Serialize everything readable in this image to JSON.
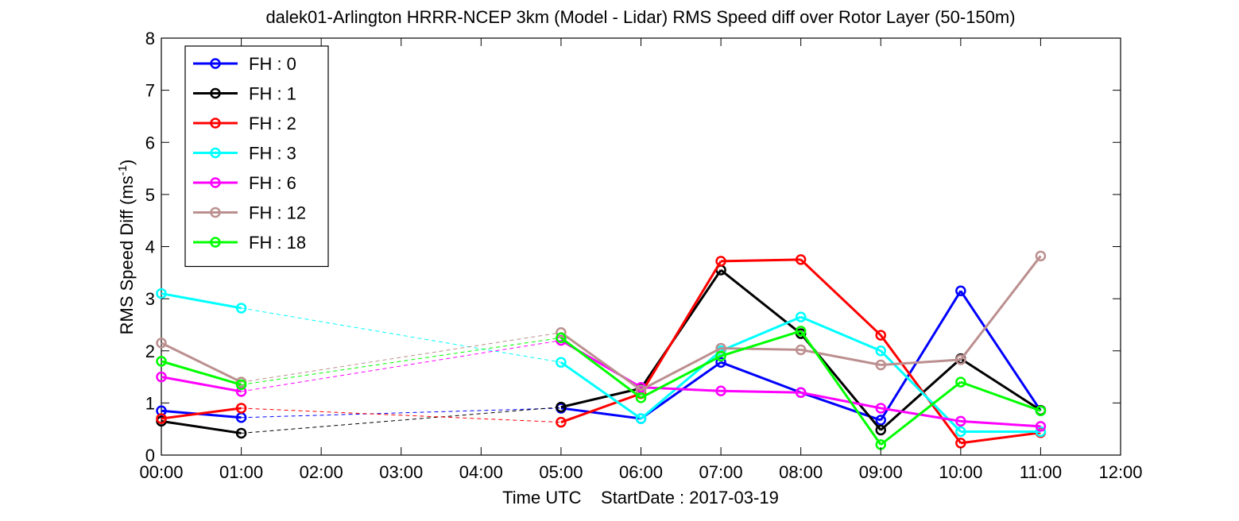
{
  "chart_data": {
    "type": "line",
    "title": "dalek01-Arlington HRRR-NCEP 3km (Model - Lidar) RMS Speed diff over Rotor Layer (50-150m)",
    "xlabel": "Time UTC    StartDate : 2017-03-19",
    "ylabel_main": "RMS Speed Diff (ms",
    "ylabel_sup": "-1",
    "ylabel_tail": ")",
    "xlim": [
      0,
      12
    ],
    "ylim": [
      0,
      8
    ],
    "x_ticks": [
      0,
      1,
      2,
      3,
      4,
      5,
      6,
      7,
      8,
      9,
      10,
      11,
      12
    ],
    "x_tick_labels": [
      "00:00",
      "01:00",
      "02:00",
      "03:00",
      "04:00",
      "05:00",
      "06:00",
      "07:00",
      "08:00",
      "09:00",
      "10:00",
      "11:00",
      "12:00"
    ],
    "y_ticks": [
      0,
      1,
      2,
      3,
      4,
      5,
      6,
      7,
      8
    ],
    "y_tick_labels": [
      "0",
      "1",
      "2",
      "3",
      "4",
      "5",
      "6",
      "7",
      "8"
    ],
    "x": [
      0,
      1,
      5,
      6,
      7,
      8,
      9,
      10,
      11
    ],
    "grid": false,
    "legend_position": "top-left",
    "series": [
      {
        "name": "FH : 0",
        "color": "#0000ff",
        "values": [
          0.85,
          0.72,
          0.9,
          0.7,
          1.78,
          1.2,
          0.67,
          3.15,
          0.85
        ]
      },
      {
        "name": "FH : 1",
        "color": "#000000",
        "values": [
          0.65,
          0.42,
          0.92,
          1.28,
          3.55,
          2.33,
          0.48,
          1.85,
          0.86
        ]
      },
      {
        "name": "FH : 2",
        "color": "#ff0000",
        "values": [
          0.7,
          0.9,
          0.63,
          1.18,
          3.72,
          3.75,
          2.3,
          0.23,
          0.43
        ]
      },
      {
        "name": "FH : 3",
        "color": "#00ffff",
        "values": [
          3.1,
          2.82,
          1.78,
          0.7,
          2.0,
          2.65,
          2.0,
          0.45,
          0.45
        ]
      },
      {
        "name": "FH : 6",
        "color": "#ff00ff",
        "values": [
          1.5,
          1.22,
          2.2,
          1.3,
          1.23,
          1.2,
          0.9,
          0.65,
          0.55
        ]
      },
      {
        "name": "FH : 12",
        "color": "#bc8f8f",
        "values": [
          2.15,
          1.4,
          2.35,
          1.25,
          2.05,
          2.02,
          1.73,
          1.83,
          3.82
        ]
      },
      {
        "name": "FH : 18",
        "color": "#00ff00",
        "values": [
          1.8,
          1.35,
          2.25,
          1.1,
          1.9,
          2.38,
          0.2,
          1.4,
          0.85
        ]
      }
    ]
  }
}
